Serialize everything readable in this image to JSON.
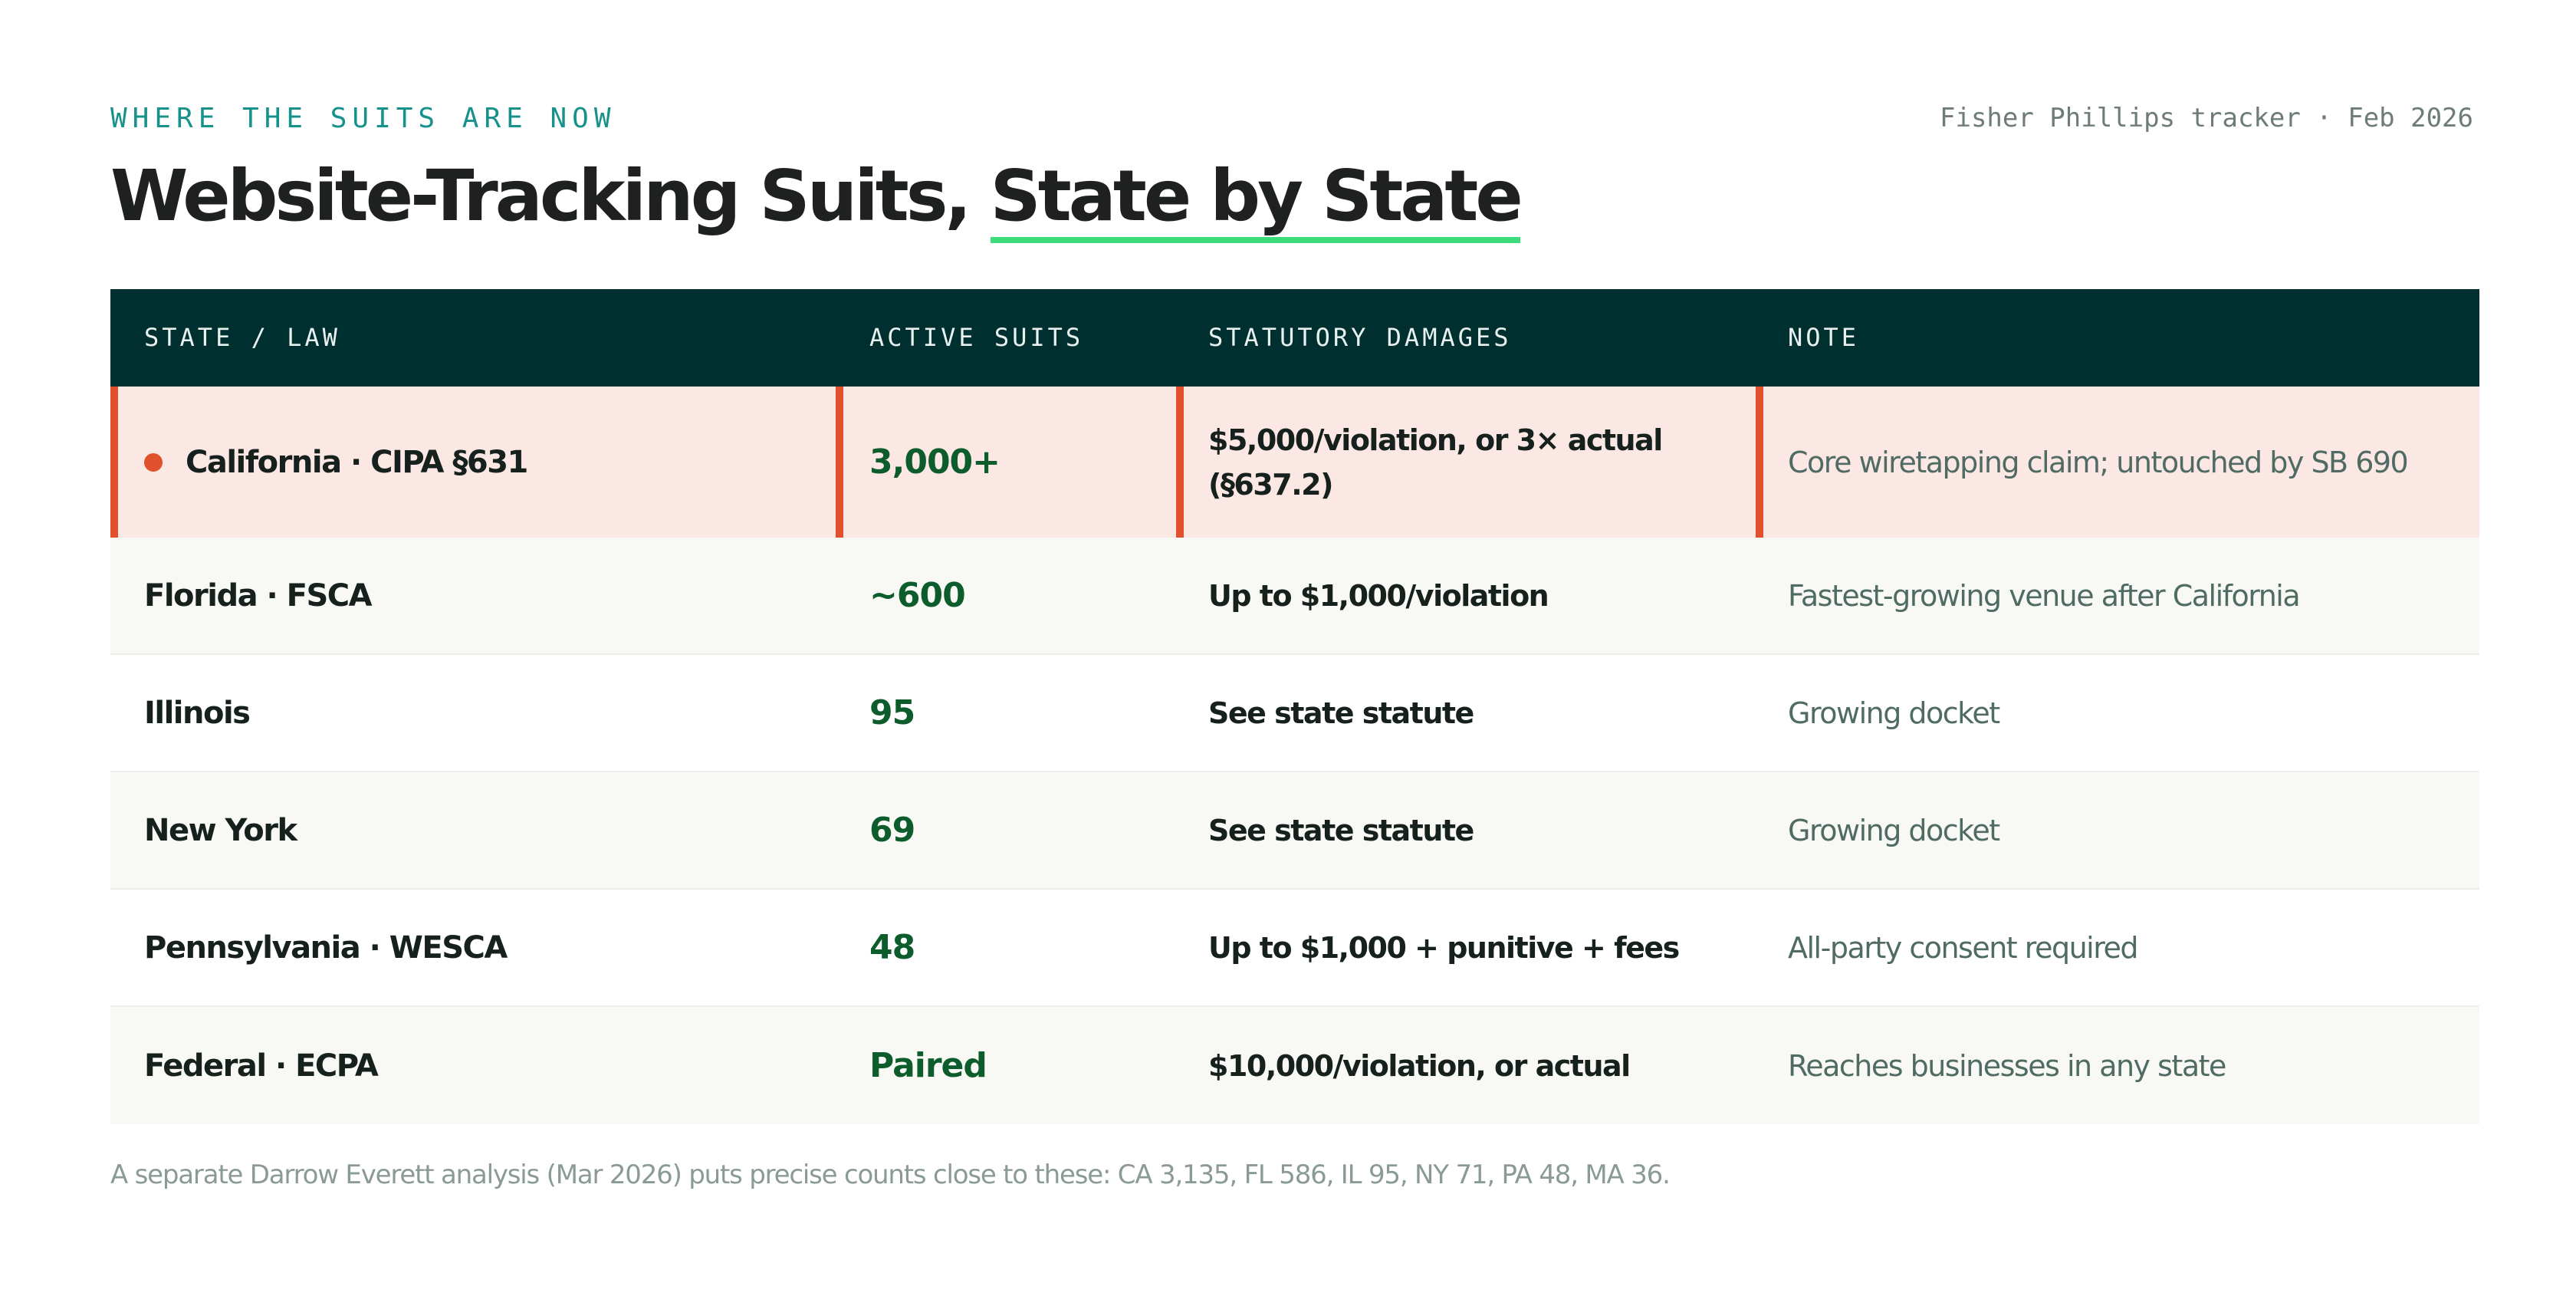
{
  "eyebrow": "WHERE THE SUITS ARE NOW",
  "source": "Fisher Phillips tracker · Feb 2026",
  "title": {
    "prefix": "Website-Tracking Suits, ",
    "highlight": "State by State"
  },
  "colors": {
    "header_bg": "#002f2f",
    "accent_teal": "#17928a",
    "highlight_underline": "#3ddc7a",
    "hot_row_bg": "#fbe8e4",
    "hot_accent": "#e2512d",
    "count_green": "#0d5c2c"
  },
  "table": {
    "columns": [
      "STATE / LAW",
      "ACTIVE SUITS",
      "STATUTORY DAMAGES",
      "NOTE"
    ],
    "rows": [
      {
        "state": "California · CIPA §631",
        "suits": "3,000+",
        "damages": "$5,000/violation, or 3× actual (§637.2)",
        "note": "Core wiretapping claim; untouched by SB 690",
        "highlighted": true
      },
      {
        "state": "Florida · FSCA",
        "suits": "~600",
        "damages": "Up to $1,000/violation",
        "note": "Fastest-growing venue after California"
      },
      {
        "state": "Illinois",
        "suits": "95",
        "damages": "See state statute",
        "note": "Growing docket"
      },
      {
        "state": "New York",
        "suits": "69",
        "damages": "See state statute",
        "note": "Growing docket"
      },
      {
        "state": "Pennsylvania · WESCA",
        "suits": "48",
        "damages": "Up to $1,000 + punitive + fees",
        "note": "All-party consent required"
      },
      {
        "state": "Federal · ECPA",
        "suits": "Paired",
        "damages": "$10,000/violation, or actual",
        "note": "Reaches businesses in any state"
      }
    ]
  },
  "footnote": "A separate Darrow Everett analysis (Mar 2026) puts precise counts close to these: CA 3,135, FL 586, IL 95, NY 71, PA 48, MA 36."
}
